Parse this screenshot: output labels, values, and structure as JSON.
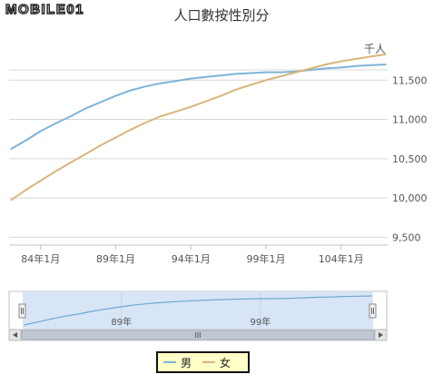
{
  "logo": {
    "text": "MOBILE01"
  },
  "chart_data": {
    "type": "line",
    "title": "人口數按性別分",
    "ylabel": "千人",
    "xlabel": "",
    "ylim": [
      9400,
      11850
    ],
    "xlim": [
      81.9,
      107.1
    ],
    "yticks": [
      9500,
      10000,
      10500,
      11000,
      11500
    ],
    "ytick_labels": [
      "9,500",
      "10,000",
      "10,500",
      "11,000",
      "11,500"
    ],
    "xticks": [
      84,
      89,
      94,
      99,
      104
    ],
    "xtick_labels": [
      "84年1月",
      "89年1月",
      "94年1月",
      "99年1月",
      "104年1月"
    ],
    "grid": true,
    "legend_position": "bottom",
    "series": [
      {
        "name": "男",
        "color": "#7cb5d8",
        "x": [
          82,
          83,
          84,
          85,
          86,
          87,
          88,
          89,
          90,
          91,
          92,
          93,
          94,
          95,
          96,
          97,
          98,
          99,
          100,
          101,
          102,
          103,
          104,
          105,
          106,
          107
        ],
        "y": [
          10620,
          10730,
          10850,
          10950,
          11040,
          11140,
          11220,
          11300,
          11370,
          11420,
          11460,
          11490,
          11520,
          11540,
          11560,
          11580,
          11590,
          11600,
          11600,
          11610,
          11630,
          11650,
          11660,
          11680,
          11690,
          11700
        ]
      },
      {
        "name": "女",
        "color": "#d9b57a",
        "x": [
          82,
          83,
          84,
          85,
          86,
          87,
          88,
          89,
          90,
          91,
          92,
          93,
          94,
          95,
          96,
          97,
          98,
          99,
          100,
          101,
          102,
          103,
          104,
          105,
          106,
          107
        ],
        "y": [
          9970,
          10100,
          10220,
          10340,
          10450,
          10560,
          10670,
          10770,
          10870,
          10960,
          11040,
          11100,
          11160,
          11230,
          11300,
          11380,
          11440,
          11500,
          11550,
          11600,
          11650,
          11700,
          11740,
          11770,
          11800,
          11830
        ]
      }
    ]
  },
  "navigator": {
    "labels": [
      "89年",
      "99年"
    ],
    "scroll_grip": "III"
  }
}
